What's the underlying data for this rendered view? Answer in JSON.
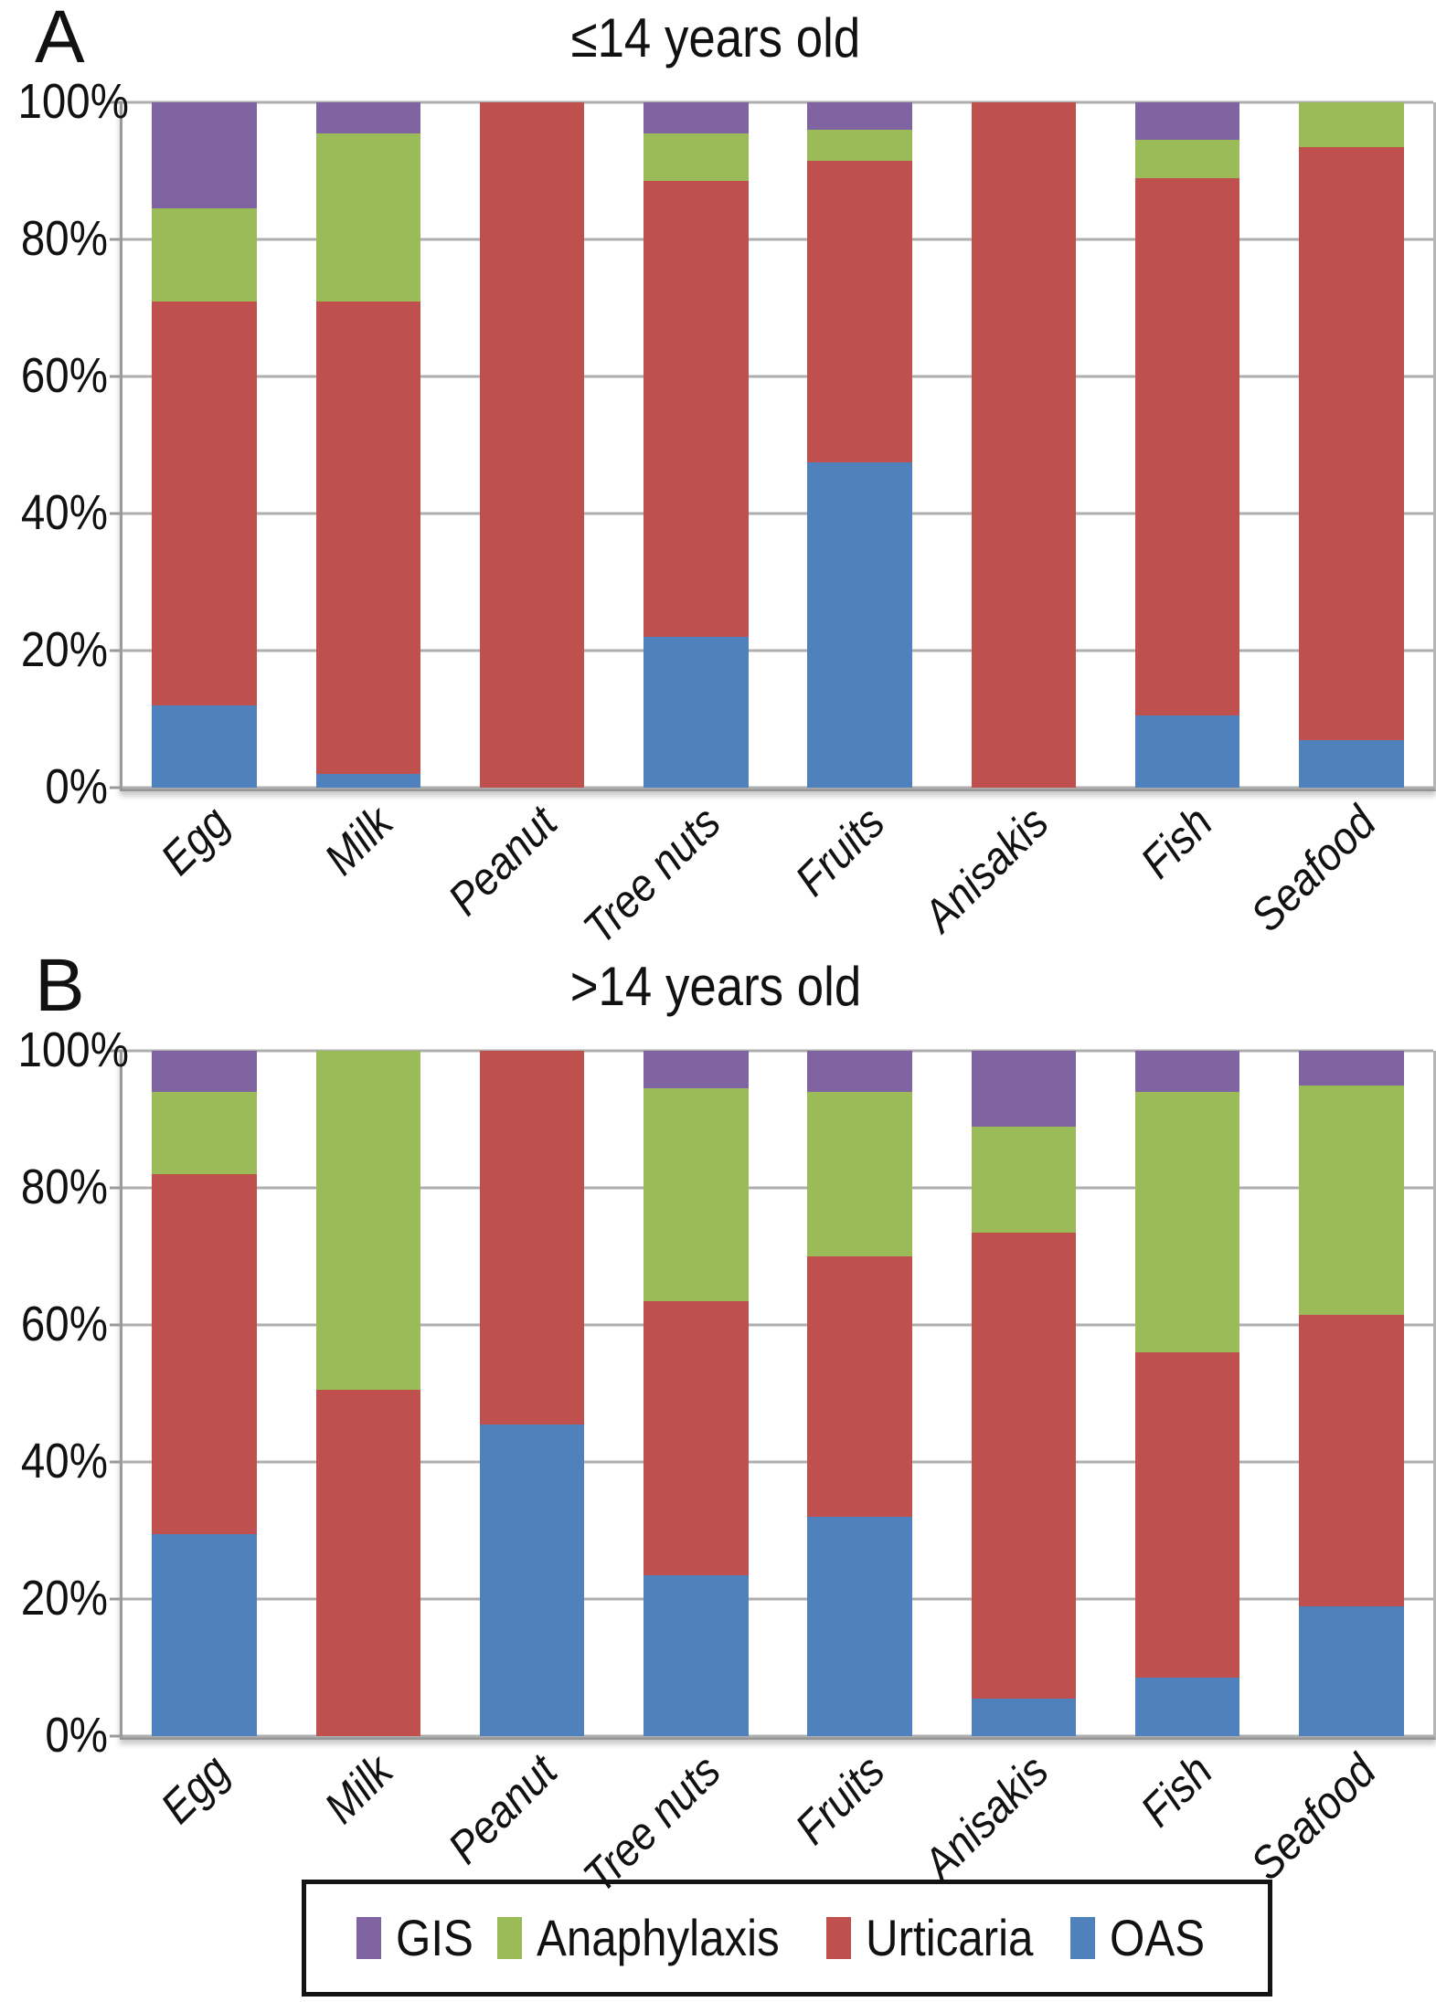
{
  "figure": {
    "type": "two-panel stacked bar chart",
    "legend": {
      "position": "bottom",
      "items": [
        {
          "label": "GIS",
          "color": "#8064A2"
        },
        {
          "label": "Anaphylaxis",
          "color": "#9BBB59"
        },
        {
          "label": "Urticaria",
          "color": "#C0504D"
        },
        {
          "label": "OAS",
          "color": "#4F81BD"
        }
      ]
    }
  },
  "chart_data": [
    {
      "type": "bar",
      "stacked": true,
      "panel_label": "A",
      "title": "≤14 years old",
      "categories": [
        "Egg",
        "Milk",
        "Peanut",
        "Tree nuts",
        "Fruits",
        "Anisakis",
        "Fish",
        "Seafood"
      ],
      "series": [
        {
          "name": "GIS",
          "color": "#8064A2",
          "values": [
            15.5,
            4.5,
            0,
            4.5,
            4,
            0,
            5.5,
            0
          ]
        },
        {
          "name": "Anaphylaxis",
          "color": "#9BBB59",
          "values": [
            13.5,
            24.5,
            0,
            7,
            4.5,
            0,
            5.5,
            6.5
          ]
        },
        {
          "name": "Urticaria",
          "color": "#C0504D",
          "values": [
            59,
            69,
            100,
            66.5,
            44,
            100,
            78.5,
            86.5
          ]
        },
        {
          "name": "OAS",
          "color": "#4F81BD",
          "values": [
            12,
            2,
            0,
            22,
            47.5,
            0,
            10.5,
            7
          ]
        }
      ],
      "units": "%",
      "ylim": [
        0,
        100
      ],
      "grid": true,
      "y_axis": {
        "ticks": [
          {
            "pct": 100,
            "label": "100%"
          },
          {
            "pct": 80,
            "label": "80%"
          },
          {
            "pct": 60,
            "label": "60%"
          },
          {
            "pct": 40,
            "label": "40%"
          },
          {
            "pct": 20,
            "label": "20%"
          },
          {
            "pct": 0,
            "label": "0%"
          }
        ]
      }
    },
    {
      "type": "bar",
      "stacked": true,
      "panel_label": "B",
      "title": ">14 years old",
      "categories": [
        "Egg",
        "Milk",
        "Peanut",
        "Tree nuts",
        "Fruits",
        "Anisakis",
        "Fish",
        "Seafood"
      ],
      "series": [
        {
          "name": "GIS",
          "color": "#8064A2",
          "values": [
            6,
            0,
            0,
            5.5,
            6,
            11,
            6,
            5
          ]
        },
        {
          "name": "Anaphylaxis",
          "color": "#9BBB59",
          "values": [
            12,
            49.5,
            0,
            31,
            24,
            15.5,
            38,
            33.5
          ]
        },
        {
          "name": "Urticaria",
          "color": "#C0504D",
          "values": [
            52.5,
            50.5,
            54.5,
            40,
            38,
            68,
            47.5,
            42.5
          ]
        },
        {
          "name": "OAS",
          "color": "#4F81BD",
          "values": [
            29.5,
            0,
            45.5,
            23.5,
            32,
            5.5,
            8.5,
            19
          ]
        }
      ],
      "units": "%",
      "ylim": [
        0,
        100
      ],
      "grid": true,
      "y_axis": {
        "ticks": [
          {
            "pct": 100,
            "label": "100%"
          },
          {
            "pct": 80,
            "label": "80%"
          },
          {
            "pct": 60,
            "label": "60%"
          },
          {
            "pct": 40,
            "label": "40%"
          },
          {
            "pct": 20,
            "label": "20%"
          },
          {
            "pct": 0,
            "label": "0%"
          }
        ]
      }
    }
  ]
}
